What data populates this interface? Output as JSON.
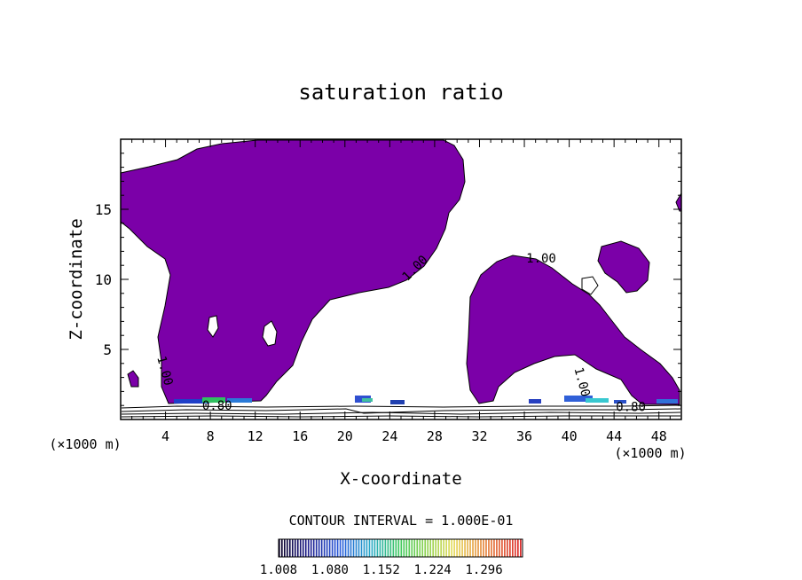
{
  "chart_data": {
    "type": "contour",
    "title": "saturation ratio",
    "xlabel": "X-coordinate",
    "ylabel": "Z-coordinate",
    "x_unit_label": "(×1000 m)",
    "y_unit_label": "(×1000 m)",
    "xlim": [
      0,
      50
    ],
    "ylim": [
      0,
      20
    ],
    "xticks": [
      4,
      8,
      12,
      16,
      20,
      24,
      28,
      32,
      36,
      40,
      44,
      48
    ],
    "yticks": [
      5,
      10,
      15
    ],
    "contour_labels": [
      {
        "text": "1.00",
        "x": 26.5,
        "y": 10.6
      },
      {
        "text": "1.00",
        "x": 37.5,
        "y": 11.2
      },
      {
        "text": "1.00",
        "x": 3.6,
        "y": 3.4
      },
      {
        "text": "1.00",
        "x": 40.8,
        "y": 2.6
      },
      {
        "text": "0.80",
        "x": 8.6,
        "y": 0.7
      },
      {
        "text": "0.80",
        "x": 45.5,
        "y": 0.6
      }
    ],
    "contour_interval_text": "CONTOUR INTERVAL = 1.000E-01",
    "colorbar": {
      "tick_labels": [
        "1.008",
        "1.080",
        "1.152",
        "1.224",
        "1.296"
      ],
      "min": 1.008,
      "max": 1.35
    },
    "fill_color": "#7b00a8"
  }
}
